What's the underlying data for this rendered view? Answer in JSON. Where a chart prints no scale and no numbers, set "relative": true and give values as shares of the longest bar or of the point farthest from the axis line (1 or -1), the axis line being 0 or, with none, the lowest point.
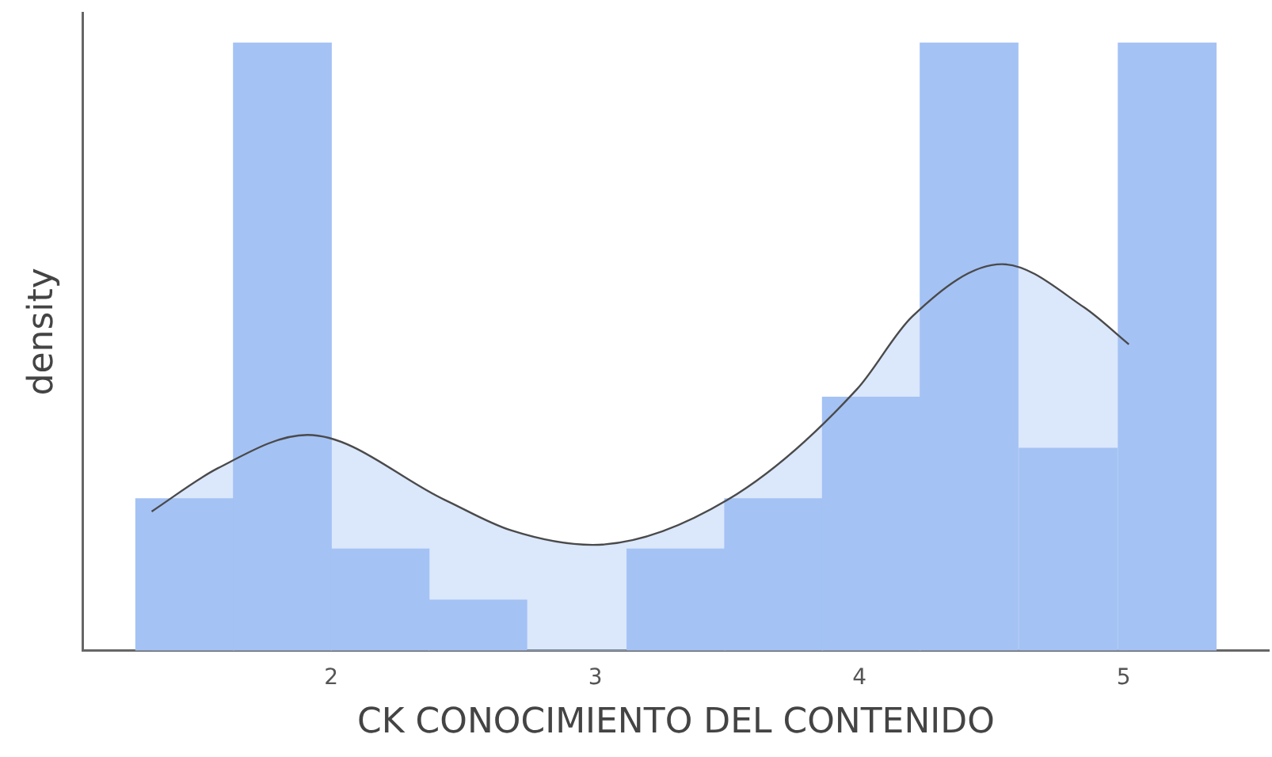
{
  "chart_data": {
    "type": "histogram",
    "relative": true,
    "xlabel": "CK CONOCIMIENTO DEL CONTENIDO",
    "ylabel": "density",
    "bins": [
      1.26,
      1.63,
      2.0,
      2.37,
      2.74,
      3.12,
      3.49,
      3.86,
      4.23,
      4.6,
      4.98,
      5.35
    ],
    "values": [
      0.25,
      1,
      0.167,
      0.083,
      0,
      0.167,
      0.25,
      0.417,
      1,
      0.333,
      1
    ],
    "color": "#a4c2f4",
    "series": [
      {
        "type": "area",
        "color": "#4a4a4a",
        "x": [
          1.32,
          1.57,
          1.91,
          2.43,
          2.68,
          2.99,
          3.5,
          3.99,
          4.2,
          4.54,
          4.85,
          5.02
        ],
        "values": [
          0.229,
          0.3,
          0.355,
          0.248,
          0.198,
          0.174,
          0.248,
          0.43,
          0.55,
          0.636,
          0.565,
          0.504
        ]
      }
    ],
    "xlim": [
      1.06,
      5.55
    ],
    "xticks": [
      2,
      3,
      4,
      5
    ],
    "grid": false,
    "legend": false
  }
}
